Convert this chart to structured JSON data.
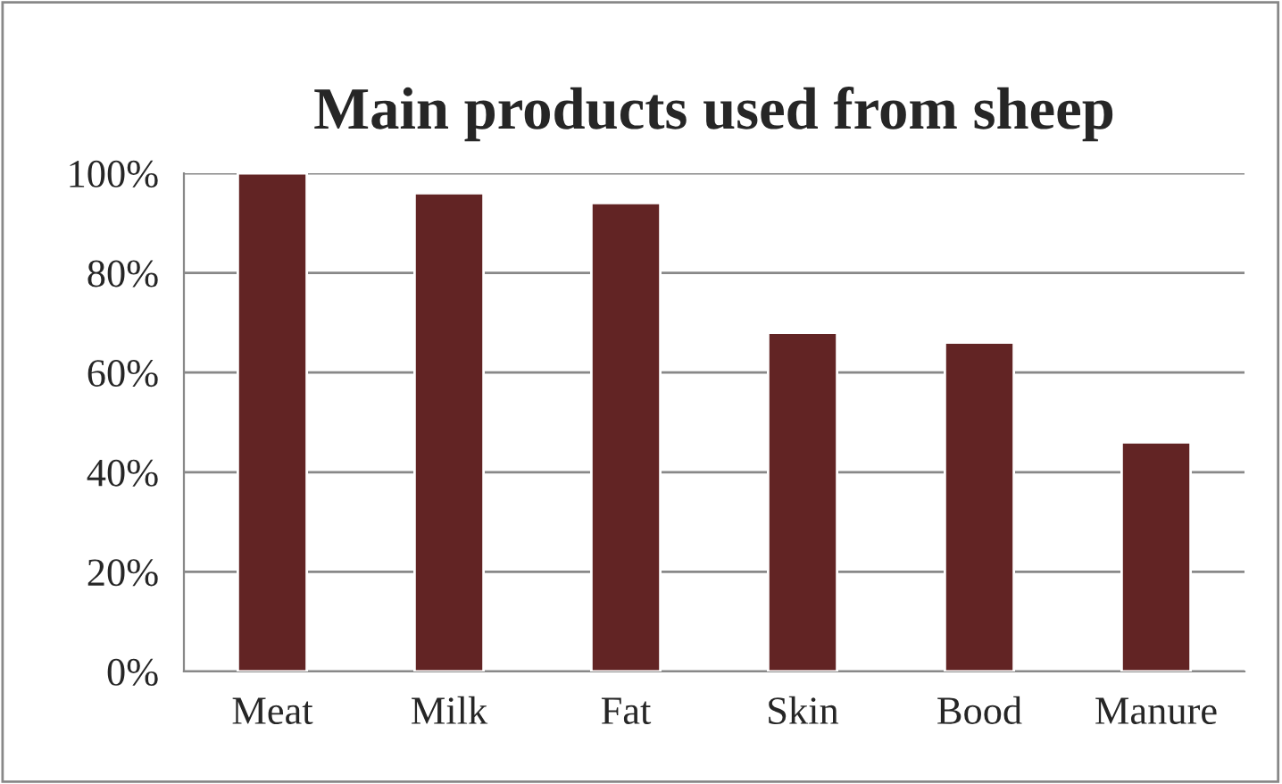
{
  "chart_data": {
    "type": "bar",
    "title": "Main products used from sheep",
    "categories": [
      "Meat",
      "Milk",
      "Fat",
      "Skin",
      "Bood",
      "Manure"
    ],
    "values": [
      100,
      96,
      94,
      68,
      66,
      46
    ],
    "color": "#622424",
    "ylim": [
      0,
      100
    ],
    "yticks": [
      {
        "value": 0,
        "label": "0%"
      },
      {
        "value": 20,
        "label": "20%"
      },
      {
        "value": 40,
        "label": "40%"
      },
      {
        "value": 60,
        "label": "60%"
      },
      {
        "value": 80,
        "label": "80%"
      },
      {
        "value": 100,
        "label": "100%"
      }
    ],
    "grid": "y",
    "legend": false
  }
}
